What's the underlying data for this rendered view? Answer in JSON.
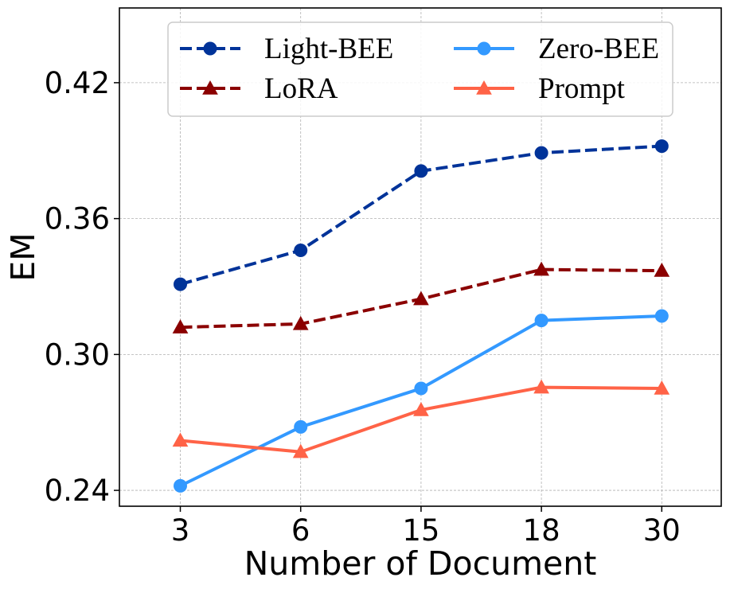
{
  "chart_data": {
    "type": "line",
    "title": "",
    "xlabel": "Number of Document",
    "ylabel": "EM",
    "categories": [
      "3",
      "6",
      "15",
      "18",
      "30"
    ],
    "ylim": [
      0.233,
      0.453
    ],
    "yticks": [
      0.24,
      0.3,
      0.36,
      0.42
    ],
    "ytick_labels": [
      "0.24",
      "0.30",
      "0.36",
      "0.42"
    ],
    "grid": true,
    "legend_position": "top-center",
    "legend_columns": 2,
    "series": [
      {
        "name": "Light-BEE",
        "values": [
          0.331,
          0.346,
          0.381,
          0.389,
          0.392
        ],
        "color": "#003399",
        "dash": "dashed",
        "marker": "circle"
      },
      {
        "name": "LoRA",
        "values": [
          0.312,
          0.3135,
          0.3245,
          0.3375,
          0.337
        ],
        "color": "#8b0000",
        "dash": "dashed",
        "marker": "triangle"
      },
      {
        "name": "Zero-BEE",
        "values": [
          0.242,
          0.268,
          0.285,
          0.315,
          0.317
        ],
        "color": "#3399ff",
        "dash": "solid",
        "marker": "circle"
      },
      {
        "name": "Prompt",
        "values": [
          0.262,
          0.257,
          0.2755,
          0.2855,
          0.285
        ],
        "color": "#ff6347",
        "dash": "solid",
        "marker": "triangle"
      }
    ]
  }
}
